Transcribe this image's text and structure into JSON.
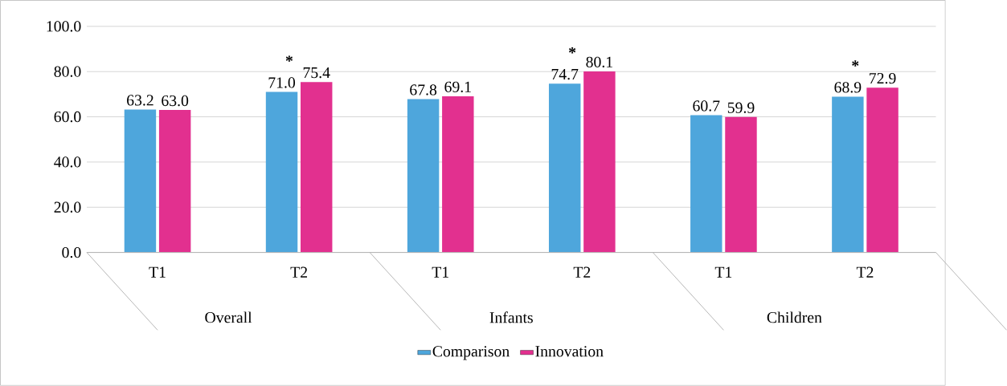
{
  "chart_data": {
    "type": "bar",
    "categories": [
      "T1",
      "T2",
      "T1",
      "T2",
      "T1",
      "T2"
    ],
    "series": [
      {
        "name": "Comparison",
        "color": "#4ea6dc",
        "values": [
          63.2,
          71.0,
          67.8,
          74.7,
          60.7,
          68.9
        ],
        "value_labels": [
          "63.2",
          "71.0",
          "67.8",
          "74.7",
          "60.7",
          "68.9"
        ]
      },
      {
        "name": "Innovation",
        "color": "#e2308f",
        "values": [
          63.0,
          75.4,
          69.1,
          80.1,
          59.9,
          72.9
        ],
        "value_labels": [
          "63.0",
          "75.4",
          "69.1",
          "80.1",
          "59.9",
          "72.9"
        ]
      }
    ],
    "ylim": [
      0,
      100
    ],
    "yticks": [
      {
        "value": 0,
        "label": "0.0"
      },
      {
        "value": 20,
        "label": "20.0"
      },
      {
        "value": 40,
        "label": "40.0"
      },
      {
        "value": 60,
        "label": "60.0"
      },
      {
        "value": 80,
        "label": "80.0"
      },
      {
        "value": 100,
        "label": "100.0"
      }
    ],
    "grid": "y",
    "legend": "bottom",
    "annotations": [
      "Overall",
      "Infants",
      "Children",
      "*",
      "*",
      "*"
    ]
  }
}
